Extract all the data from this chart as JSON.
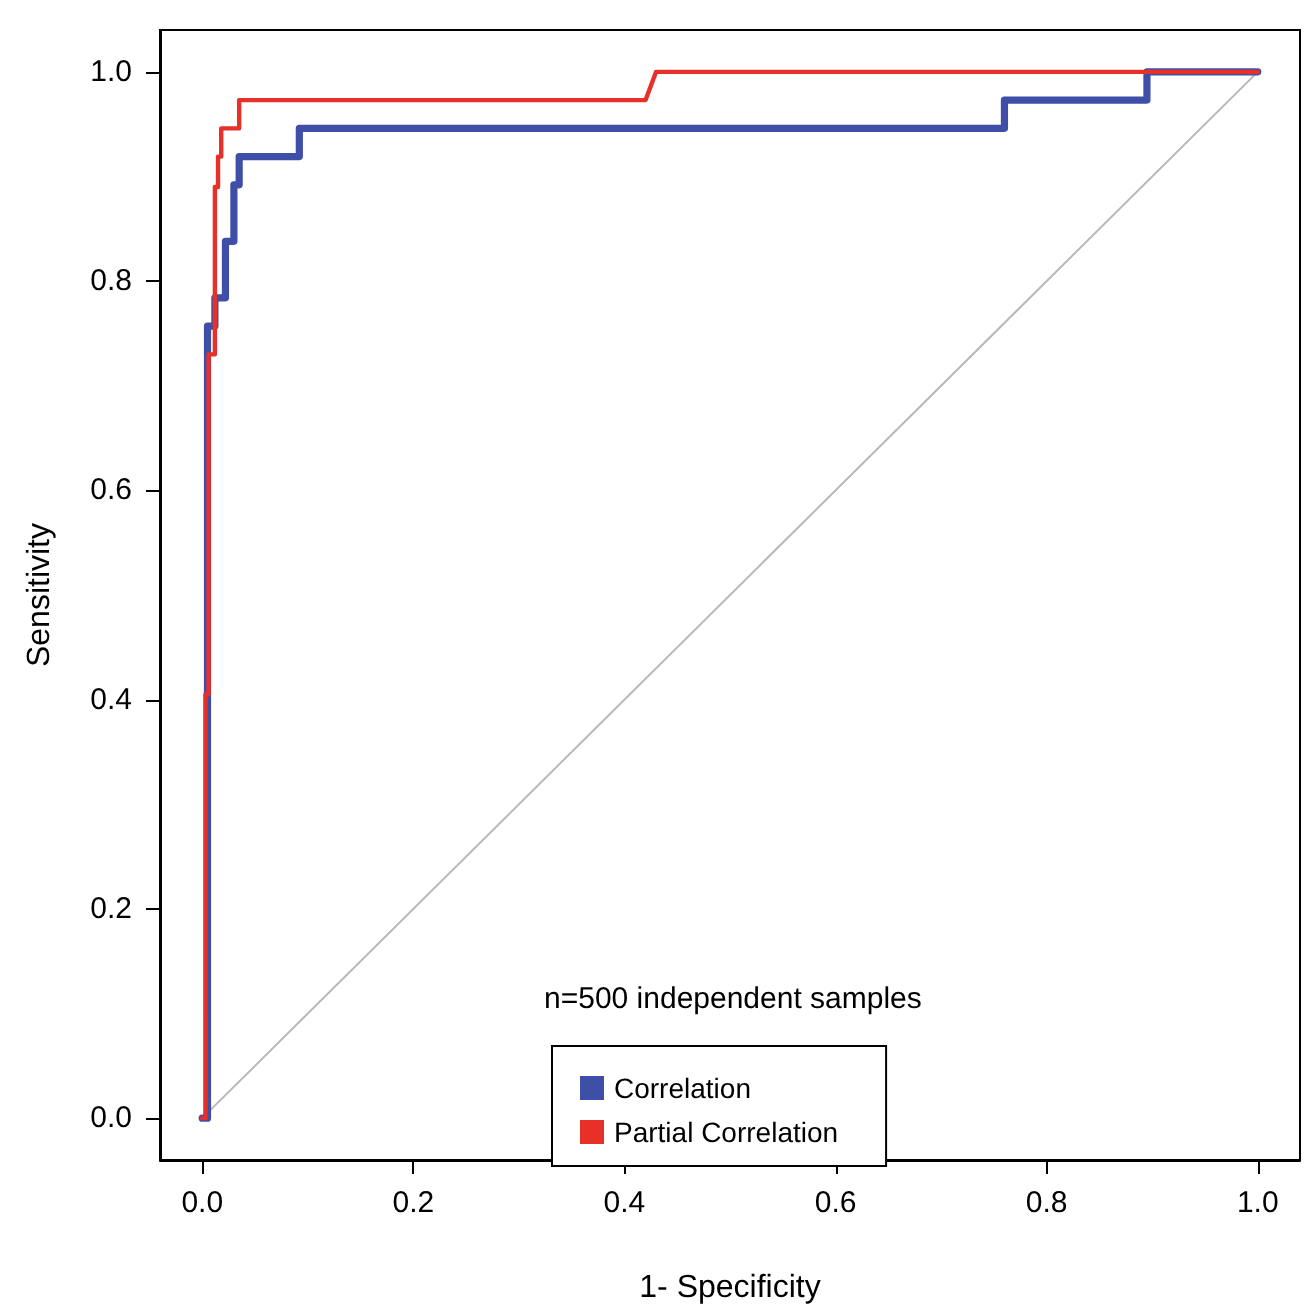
{
  "chart_data": {
    "type": "line",
    "xlabel": "1- Specificity",
    "ylabel": "Sensitivity",
    "annotations": [
      "n=500 independent samples"
    ],
    "xlim": [
      -0.04,
      1.04
    ],
    "ylim": [
      -0.04,
      1.04
    ],
    "xticks": [
      {
        "value": 0,
        "label": "0.0"
      },
      0.2,
      0.4,
      0.6,
      0.8,
      {
        "value": 1,
        "label": "1.0"
      }
    ],
    "yticks": [
      {
        "value": 0,
        "label": "0.0"
      },
      0.2,
      0.4,
      0.6,
      0.8,
      {
        "value": 1,
        "label": "1.0"
      }
    ],
    "grid": false,
    "legend": "bottom",
    "marker": "none",
    "line_style": "solid",
    "series": [
      {
        "name": "Correlation",
        "color": "#3f4fa8",
        "x": [
          0,
          0.005,
          0.005,
          0.012,
          0.012,
          0.022,
          0.022,
          0.03,
          0.03,
          0.035,
          0.035,
          0.092,
          0.092,
          0.76,
          0.76,
          0.895,
          0.895,
          1
        ],
        "values": [
          0,
          0,
          0.757,
          0.757,
          0.784,
          0.784,
          0.838,
          0.838,
          0.892,
          0.892,
          0.919,
          0.919,
          0.946,
          0.946,
          0.973,
          0.973,
          1,
          1
        ]
      },
      {
        "name": "Partial Correlation",
        "color": "#e8302a",
        "x": [
          0,
          0.003,
          0.003,
          0.006,
          0.006,
          0.012,
          0.012,
          0.015,
          0.015,
          0.018,
          0.018,
          0.035,
          0.035,
          0.42,
          0.43,
          1
        ],
        "values": [
          0,
          0,
          0.405,
          0.405,
          0.73,
          0.73,
          0.89,
          0.89,
          0.919,
          0.919,
          0.946,
          0.946,
          0.973,
          0.973,
          1,
          1
        ]
      },
      {
        "color": "#b8b8b8",
        "x": [
          0,
          1
        ],
        "values": [
          0,
          1
        ]
      }
    ]
  }
}
